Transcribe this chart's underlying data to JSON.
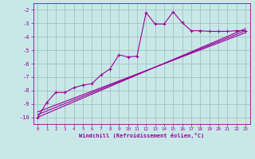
{
  "xlabel": "Windchill (Refroidissement éolien,°C)",
  "bg_color": "#c8e8e8",
  "grid_color": "#a0b8b8",
  "line_color": "#990099",
  "xlim": [
    -0.5,
    23.5
  ],
  "ylim": [
    -10.5,
    -1.5
  ],
  "yticks": [
    -10,
    -9,
    -8,
    -7,
    -6,
    -5,
    -4,
    -3,
    -2
  ],
  "xticks": [
    0,
    1,
    2,
    3,
    4,
    5,
    6,
    7,
    8,
    9,
    10,
    11,
    12,
    13,
    14,
    15,
    16,
    17,
    18,
    19,
    20,
    21,
    22,
    23
  ],
  "main_x": [
    0,
    1,
    2,
    3,
    4,
    5,
    6,
    7,
    8,
    9,
    10,
    11,
    12,
    13,
    14,
    15,
    16,
    17,
    18,
    19,
    20,
    21,
    22,
    23
  ],
  "main_y": [
    -10.0,
    -8.9,
    -8.15,
    -8.15,
    -7.8,
    -7.6,
    -7.5,
    -6.85,
    -6.4,
    -5.35,
    -5.5,
    -5.45,
    -2.2,
    -3.05,
    -3.05,
    -2.15,
    -2.95,
    -3.55,
    -3.55,
    -3.6,
    -3.6,
    -3.6,
    -3.55,
    -3.55
  ],
  "line2_x": [
    0,
    23
  ],
  "line2_y": [
    -10.0,
    -3.4
  ],
  "line3_x": [
    0,
    23
  ],
  "line3_y": [
    -9.8,
    -3.55
  ],
  "line4_x": [
    0,
    23
  ],
  "line4_y": [
    -9.6,
    -3.7
  ]
}
